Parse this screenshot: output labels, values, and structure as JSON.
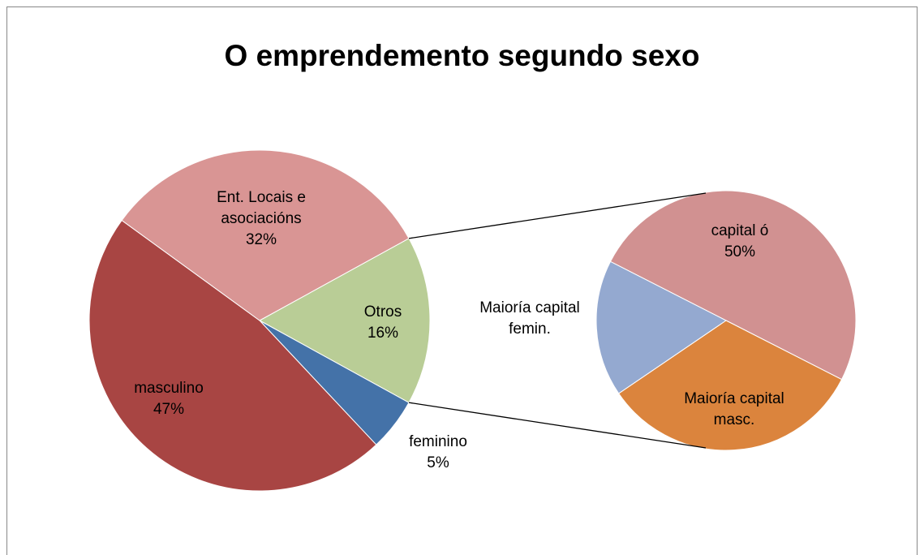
{
  "chart_data": {
    "type": "pie-of-pie",
    "title": "O emprendemento segundo sexo",
    "categories": [
      "Otros",
      "feminino",
      "masculino",
      "Ent. Locais e asociacións"
    ],
    "values": [
      16,
      5,
      47,
      32
    ],
    "value_labels": [
      "16%",
      "5%",
      "47%",
      "32%"
    ],
    "colors": [
      "#b9cd96",
      "#4472a8",
      "#a84543",
      "#d99594"
    ],
    "secondary": {
      "categories": [
        "capital ó",
        "Maioría capital masc.",
        "Maioría capital femin."
      ],
      "values": [
        50,
        33,
        17
      ],
      "value_labels": [
        "50%",
        null,
        null
      ],
      "colors": [
        "#d19191",
        "#db843d",
        "#94a9d0"
      ]
    }
  }
}
